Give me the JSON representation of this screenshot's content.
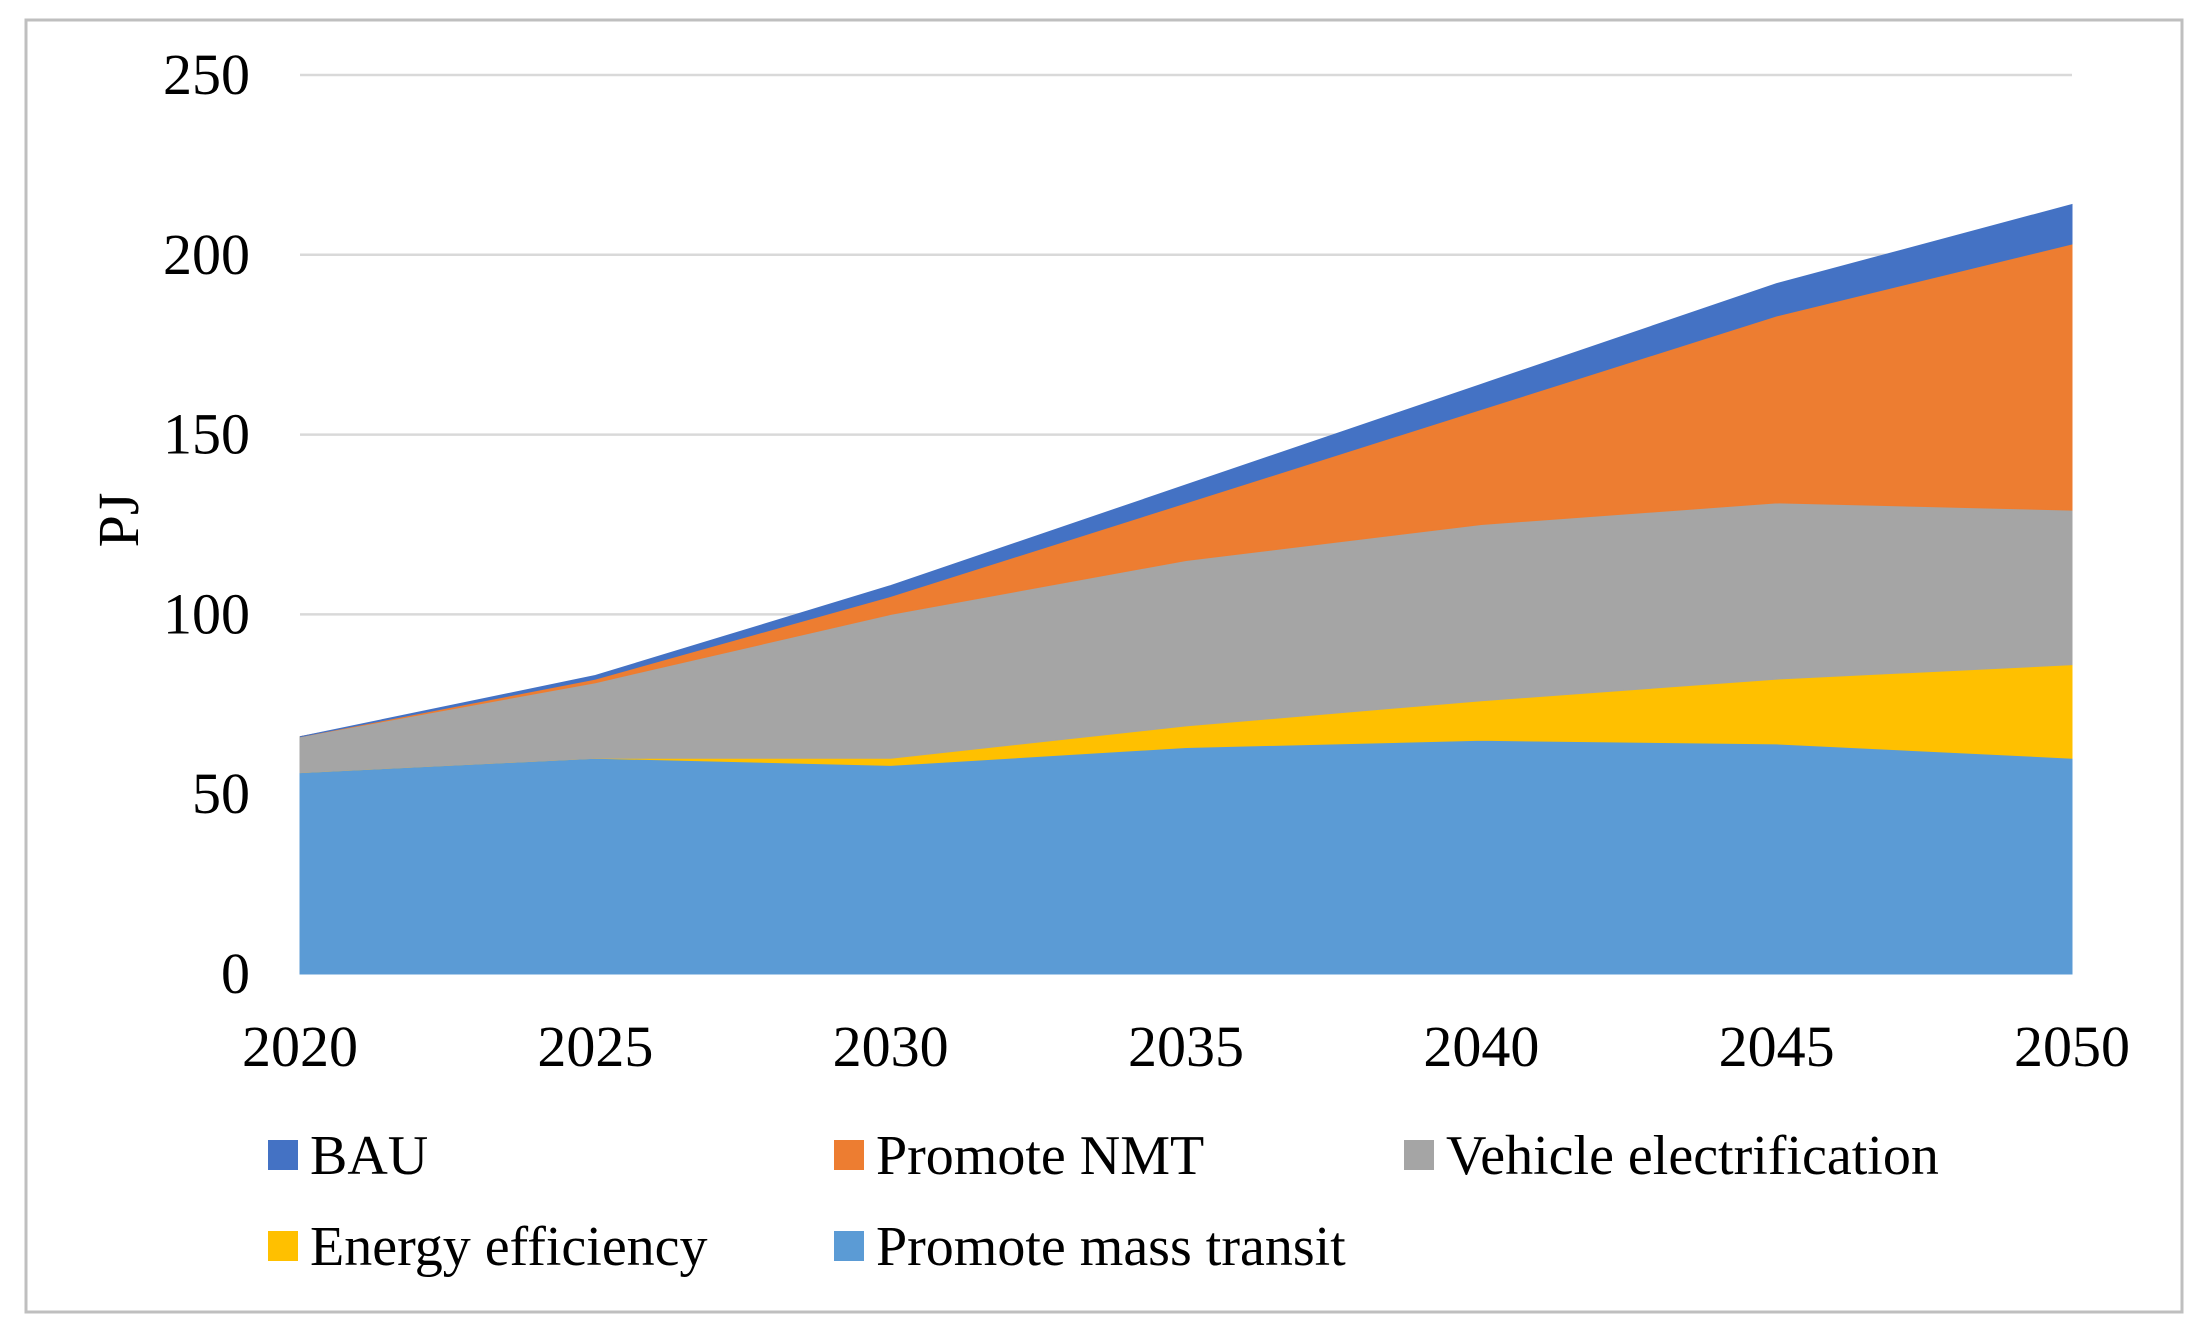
{
  "chart_data": {
    "type": "area",
    "stacked": true,
    "title": "",
    "xlabel": "",
    "ylabel": "PJ",
    "ylim": [
      0,
      250
    ],
    "yticks": [
      0,
      50,
      100,
      150,
      200,
      250
    ],
    "x": [
      2020,
      2025,
      2030,
      2035,
      2040,
      2045,
      2050
    ],
    "x_tick_labels": [
      "2020",
      "2025",
      "2030",
      "2035",
      "2040",
      "2045",
      "2050"
    ],
    "y_tick_labels": [
      "0",
      "50",
      "100",
      "150",
      "200",
      "250"
    ],
    "grid": "horizontal",
    "legend_position": "bottom",
    "series": [
      {
        "name": "Promote mass transit",
        "color": "#5B9BD5",
        "values": [
          56,
          60,
          58,
          63,
          65,
          64,
          60
        ]
      },
      {
        "name": "Energy efficiency",
        "color": "#FFC000",
        "values": [
          0,
          0,
          2,
          6,
          11,
          18,
          26
        ]
      },
      {
        "name": "Vehicle electrification",
        "color": "#A5A5A5",
        "values": [
          10,
          21,
          40,
          46,
          49,
          49,
          43
        ]
      },
      {
        "name": "Promote NMT",
        "color": "#ED7D31",
        "values": [
          0,
          1,
          5,
          16,
          32,
          52,
          74
        ]
      },
      {
        "name": "BAU",
        "color": "#4472C4",
        "values": [
          0,
          1,
          3,
          5,
          7,
          9,
          11
        ]
      }
    ],
    "legend_order": [
      "BAU",
      "Promote NMT",
      "Vehicle electrification",
      "Energy efficiency",
      "Promote mass transit"
    ]
  }
}
